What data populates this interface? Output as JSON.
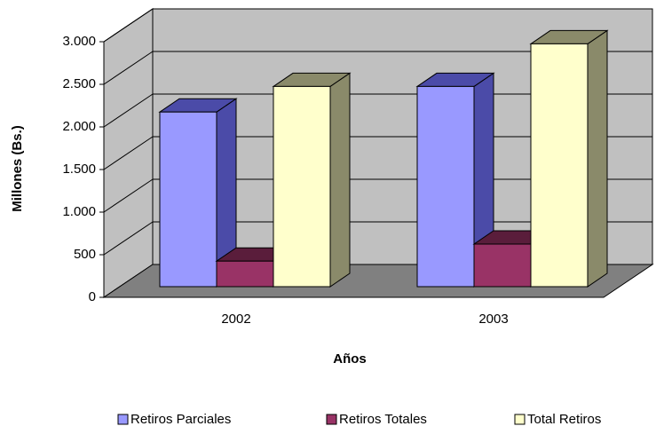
{
  "chart_data": {
    "type": "bar3d",
    "categories": [
      "2002",
      "2003"
    ],
    "series": [
      {
        "name": "Retiros Parciales",
        "color": "#9999ff",
        "side": "#4b4ba8",
        "values": [
          2050,
          2350
        ]
      },
      {
        "name": "Retiros Totales",
        "color": "#993366",
        "side": "#5a1d3b",
        "values": [
          300,
          500
        ]
      },
      {
        "name": "Total Retiros",
        "color": "#ffffcc",
        "side": "#8a8a6a",
        "values": [
          2350,
          2850
        ]
      }
    ],
    "ylim": [
      0,
      3000
    ],
    "yticks": [
      0,
      500,
      {
        "value": 1000,
        "label": "1.000"
      },
      {
        "value": 1500,
        "label": "1.500"
      },
      {
        "value": 2000,
        "label": "2.000"
      },
      {
        "value": 2500,
        "label": "2.500"
      },
      {
        "value": 3000,
        "label": "3.000"
      }
    ],
    "ylabel": "Millones (Bs.)",
    "xlabel": "Años",
    "grid": true,
    "legend": "bottom"
  }
}
